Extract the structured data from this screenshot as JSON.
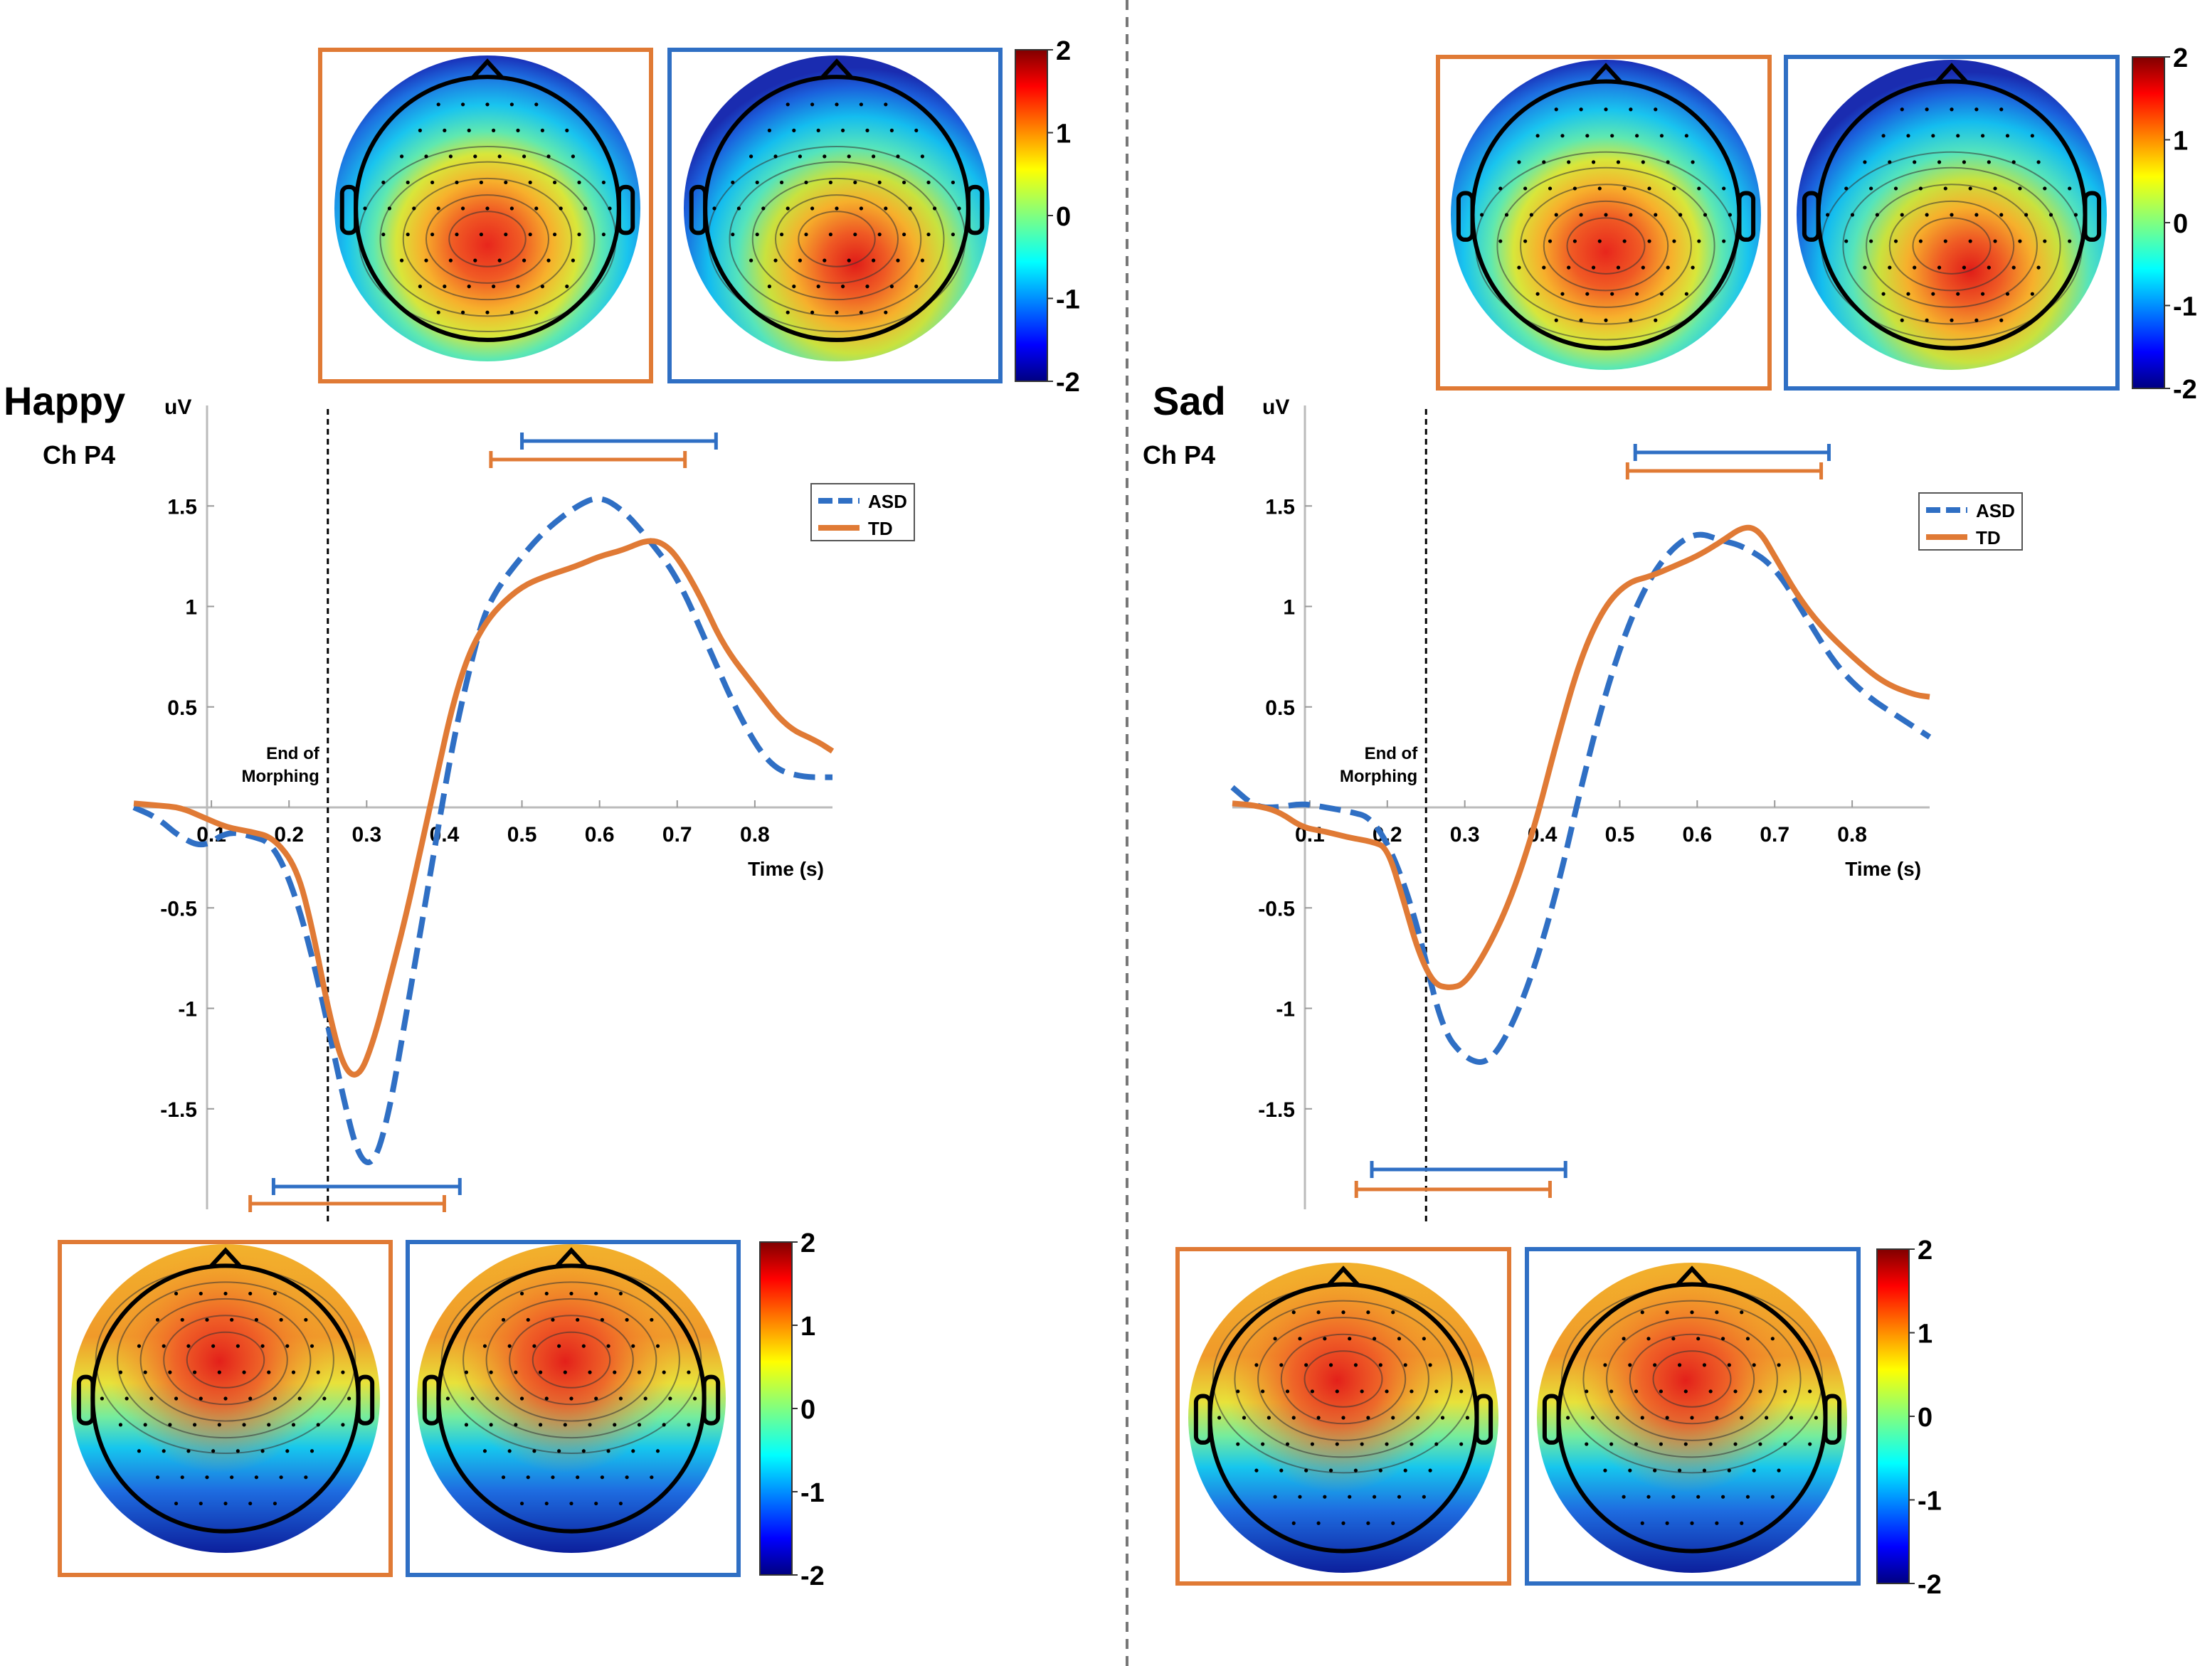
{
  "colors": {
    "asd": "#2f6fc4",
    "td": "#e07a35",
    "orange_frame": "#e07a35",
    "blue_frame": "#2f6fc4",
    "divider": "#777777"
  },
  "colorbar": {
    "ticks": [
      "2",
      "1",
      "0",
      "-1",
      "-2"
    ],
    "range": [
      -2,
      2
    ],
    "colormap": "jet"
  },
  "chart_data": [
    {
      "type": "line",
      "condition": "Happy",
      "channel": "Ch P4",
      "title": "Happy",
      "subtitle": "Ch P4",
      "ylabel": "uV",
      "xlabel": "Time (s)",
      "xlim": [
        0,
        0.9
      ],
      "ylim": [
        -2,
        2
      ],
      "xticks": [
        0.1,
        0.2,
        0.3,
        0.4,
        0.5,
        0.6,
        0.7,
        0.8
      ],
      "xtick_labels": [
        "0.1",
        "0.2",
        "0.3",
        "0.4",
        "0.5",
        "0.6",
        "0.7",
        "0.8"
      ],
      "yticks": [
        1.5,
        1,
        0.5,
        -0.5,
        -1,
        -1.5
      ],
      "ytick_labels": [
        "1.5",
        "1",
        "0.5",
        "-0.5",
        "-1",
        "-1.5"
      ],
      "marker_x": 0.25,
      "marker_label_1": "End of",
      "marker_label_2": "Morphing",
      "legend": [
        "ASD",
        "TD"
      ],
      "series": [
        {
          "name": "ASD",
          "style": "dashed",
          "x": [
            0,
            0.03,
            0.06,
            0.09,
            0.12,
            0.15,
            0.18,
            0.21,
            0.24,
            0.27,
            0.29,
            0.31,
            0.33,
            0.35,
            0.37,
            0.39,
            0.41,
            0.43,
            0.45,
            0.47,
            0.5,
            0.53,
            0.57,
            0.6,
            0.63,
            0.66,
            0.7,
            0.74,
            0.78,
            0.82,
            0.86,
            0.9
          ],
          "values": [
            0.0,
            -0.05,
            -0.15,
            -0.2,
            -0.12,
            -0.14,
            -0.18,
            -0.45,
            -0.9,
            -1.45,
            -1.75,
            -1.78,
            -1.5,
            -1.05,
            -0.6,
            -0.15,
            0.3,
            0.65,
            0.95,
            1.1,
            1.25,
            1.38,
            1.5,
            1.55,
            1.48,
            1.35,
            1.15,
            0.8,
            0.45,
            0.2,
            0.15,
            0.15
          ]
        },
        {
          "name": "TD",
          "style": "solid",
          "x": [
            0,
            0.03,
            0.06,
            0.09,
            0.12,
            0.15,
            0.18,
            0.21,
            0.23,
            0.25,
            0.27,
            0.29,
            0.31,
            0.33,
            0.35,
            0.37,
            0.39,
            0.41,
            0.43,
            0.45,
            0.47,
            0.5,
            0.53,
            0.57,
            0.6,
            0.63,
            0.66,
            0.68,
            0.7,
            0.73,
            0.76,
            0.8,
            0.84,
            0.88,
            0.9
          ],
          "values": [
            0.02,
            0.01,
            0.0,
            -0.05,
            -0.1,
            -0.12,
            -0.15,
            -0.3,
            -0.6,
            -1.0,
            -1.3,
            -1.35,
            -1.15,
            -0.85,
            -0.55,
            -0.2,
            0.15,
            0.5,
            0.75,
            0.9,
            1.0,
            1.1,
            1.15,
            1.2,
            1.25,
            1.28,
            1.33,
            1.32,
            1.25,
            1.05,
            0.8,
            0.6,
            0.4,
            0.33,
            0.28
          ]
        }
      ],
      "significance_bars": [
        {
          "series": "ASD",
          "window": [
            0.5,
            0.75
          ]
        },
        {
          "series": "TD",
          "window": [
            0.46,
            0.71
          ]
        },
        {
          "series": "ASD",
          "window": [
            0.18,
            0.42
          ]
        },
        {
          "series": "TD",
          "window": [
            0.15,
            0.4
          ]
        }
      ]
    },
    {
      "type": "line",
      "condition": "Sad",
      "channel": "Ch P4",
      "title": "Sad",
      "subtitle": "Ch P4",
      "ylabel": "uV",
      "xlabel": "Time (s)",
      "xlim": [
        0,
        0.9
      ],
      "ylim": [
        -2,
        2
      ],
      "xticks": [
        0.1,
        0.2,
        0.3,
        0.4,
        0.5,
        0.6,
        0.7,
        0.8
      ],
      "xtick_labels": [
        "0.1",
        "0.2",
        "0.3",
        "0.4",
        "0.5",
        "0.6",
        "0.7",
        "0.8"
      ],
      "yticks": [
        1.5,
        1,
        0.5,
        -0.5,
        -1,
        -1.5
      ],
      "ytick_labels": [
        "1.5",
        "1",
        "0.5",
        "-0.5",
        "-1",
        "-1.5"
      ],
      "marker_x": 0.25,
      "marker_label_1": "End of",
      "marker_label_2": "Morphing",
      "legend": [
        "ASD",
        "TD"
      ],
      "series": [
        {
          "name": "ASD",
          "style": "dashed",
          "x": [
            0,
            0.03,
            0.06,
            0.09,
            0.12,
            0.15,
            0.18,
            0.21,
            0.24,
            0.27,
            0.3,
            0.33,
            0.36,
            0.39,
            0.42,
            0.45,
            0.48,
            0.51,
            0.54,
            0.57,
            0.6,
            0.63,
            0.66,
            0.7,
            0.74,
            0.78,
            0.82,
            0.86,
            0.9
          ],
          "values": [
            0.1,
            0.0,
            0.0,
            0.02,
            0.0,
            -0.02,
            -0.05,
            -0.25,
            -0.6,
            -1.1,
            -1.25,
            -1.28,
            -1.1,
            -0.8,
            -0.4,
            0.1,
            0.55,
            0.9,
            1.15,
            1.3,
            1.37,
            1.33,
            1.3,
            1.2,
            0.95,
            0.7,
            0.55,
            0.45,
            0.35
          ]
        },
        {
          "name": "TD",
          "style": "solid",
          "x": [
            0,
            0.03,
            0.06,
            0.09,
            0.12,
            0.15,
            0.18,
            0.2,
            0.22,
            0.24,
            0.26,
            0.28,
            0.3,
            0.33,
            0.36,
            0.39,
            0.42,
            0.45,
            0.48,
            0.51,
            0.54,
            0.57,
            0.6,
            0.63,
            0.66,
            0.68,
            0.7,
            0.73,
            0.76,
            0.8,
            0.84,
            0.88,
            0.9
          ],
          "values": [
            0.02,
            0.01,
            -0.02,
            -0.1,
            -0.12,
            -0.15,
            -0.17,
            -0.2,
            -0.45,
            -0.72,
            -0.88,
            -0.9,
            -0.88,
            -0.7,
            -0.45,
            -0.1,
            0.35,
            0.75,
            1.0,
            1.12,
            1.15,
            1.2,
            1.25,
            1.32,
            1.4,
            1.38,
            1.25,
            1.05,
            0.9,
            0.75,
            0.62,
            0.56,
            0.55
          ]
        }
      ],
      "significance_bars": [
        {
          "series": "ASD",
          "window": [
            0.52,
            0.77
          ]
        },
        {
          "series": "TD",
          "window": [
            0.51,
            0.76
          ]
        },
        {
          "series": "ASD",
          "window": [
            0.18,
            0.43
          ]
        },
        {
          "series": "TD",
          "window": [
            0.16,
            0.41
          ]
        }
      ]
    }
  ]
}
